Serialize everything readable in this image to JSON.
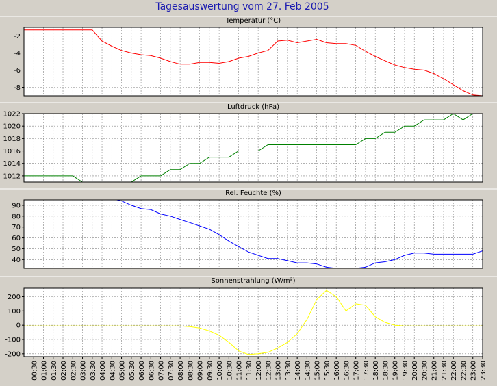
{
  "title": "Tagesauswertung vom 27. Feb 2005",
  "colors": {
    "background": "#d4d0c8",
    "plot_background": "#ffffff",
    "grid": "#808080",
    "title": "#1a1ab0"
  },
  "chart_data": [
    {
      "type": "line",
      "title": "Temperatur (°C)",
      "color": "#ff0000",
      "ylim": [
        -9,
        -1
      ],
      "yticks": [
        -2,
        -4,
        -6,
        -8
      ],
      "grid": true,
      "x": [
        "00:00",
        "00:30",
        "01:00",
        "01:30",
        "02:00",
        "02:30",
        "03:00",
        "03:30",
        "04:00",
        "04:30",
        "05:00",
        "05:30",
        "06:00",
        "06:30",
        "07:00",
        "07:30",
        "08:00",
        "08:30",
        "09:00",
        "09:30",
        "10:00",
        "10:30",
        "11:00",
        "11:30",
        "12:00",
        "12:30",
        "13:00",
        "13:30",
        "14:00",
        "14:30",
        "15:00",
        "15:30",
        "16:00",
        "16:30",
        "17:00",
        "17:30",
        "18:00",
        "18:30",
        "19:00",
        "19:30",
        "20:00",
        "20:30",
        "21:00",
        "21:30",
        "22:00",
        "22:30",
        "23:00",
        "23:30"
      ],
      "values": [
        -1.3,
        -1.3,
        -1.3,
        -1.3,
        -1.3,
        -1.3,
        -1.3,
        -1.3,
        -2.6,
        -3.2,
        -3.7,
        -4.0,
        -4.2,
        -4.3,
        -4.6,
        -5.0,
        -5.3,
        -5.3,
        -5.1,
        -5.1,
        -5.2,
        -5.0,
        -4.6,
        -4.4,
        -4.0,
        -3.7,
        -2.6,
        -2.5,
        -2.8,
        -2.6,
        -2.4,
        -2.8,
        -2.9,
        -2.9,
        -3.1,
        -3.8,
        -4.4,
        -4.9,
        -5.4,
        -5.7,
        -5.9,
        -6.0,
        -6.4,
        -7.0,
        -7.7,
        -8.4,
        -8.9,
        -9.0
      ]
    },
    {
      "type": "line",
      "title": "Luftdruck (hPa)",
      "color": "#008000",
      "ylim": [
        1011,
        1022
      ],
      "yticks": [
        1012,
        1014,
        1016,
        1018,
        1020,
        1022
      ],
      "grid": true,
      "x": [
        "00:00",
        "00:30",
        "01:00",
        "01:30",
        "02:00",
        "02:30",
        "03:00",
        "03:30",
        "04:00",
        "04:30",
        "05:00",
        "05:30",
        "06:00",
        "06:30",
        "07:00",
        "07:30",
        "08:00",
        "08:30",
        "09:00",
        "09:30",
        "10:00",
        "10:30",
        "11:00",
        "11:30",
        "12:00",
        "12:30",
        "13:00",
        "13:30",
        "14:00",
        "14:30",
        "15:00",
        "15:30",
        "16:00",
        "16:30",
        "17:00",
        "17:30",
        "18:00",
        "18:30",
        "19:00",
        "19:30",
        "20:00",
        "20:30",
        "21:00",
        "21:30",
        "22:00",
        "22:30",
        "23:00",
        "23:30"
      ],
      "values": [
        1012,
        1012,
        1012,
        1012,
        1012,
        1012,
        1011,
        1011,
        1011,
        1011,
        1011,
        1011,
        1012,
        1012,
        1012,
        1013,
        1013,
        1014,
        1014,
        1015,
        1015,
        1015,
        1016,
        1016,
        1016,
        1017,
        1017,
        1017,
        1017,
        1017,
        1017,
        1017,
        1017,
        1017,
        1017,
        1018,
        1018,
        1019,
        1019,
        1020,
        1020,
        1021,
        1021,
        1021,
        1022,
        1021,
        1022,
        1022
      ]
    },
    {
      "type": "line",
      "title": "Rel. Feuchte (%)",
      "color": "#0000ff",
      "ylim": [
        32,
        95
      ],
      "yticks": [
        90,
        80,
        70,
        60,
        50,
        40
      ],
      "grid": true,
      "x": [
        "00:00",
        "00:30",
        "01:00",
        "01:30",
        "02:00",
        "02:30",
        "03:00",
        "03:30",
        "04:00",
        "04:30",
        "05:00",
        "05:30",
        "06:00",
        "06:30",
        "07:00",
        "07:30",
        "08:00",
        "08:30",
        "09:00",
        "09:30",
        "10:00",
        "10:30",
        "11:00",
        "11:30",
        "12:00",
        "12:30",
        "13:00",
        "13:30",
        "14:00",
        "14:30",
        "15:00",
        "15:30",
        "16:00",
        "16:30",
        "17:00",
        "17:30",
        "18:00",
        "18:30",
        "19:00",
        "19:30",
        "20:00",
        "20:30",
        "21:00",
        "21:30",
        "22:00",
        "22:30",
        "23:00",
        "23:30"
      ],
      "values": [
        95,
        95,
        95,
        95,
        95,
        95,
        95,
        96,
        97,
        96,
        94,
        90,
        87,
        86,
        82,
        80,
        77,
        74,
        71,
        68,
        63,
        57,
        52,
        47,
        44,
        41,
        41,
        39,
        37,
        37,
        36,
        33,
        32,
        32,
        32,
        33,
        37,
        38,
        40,
        44,
        46,
        46,
        45,
        45,
        45,
        45,
        45,
        48
      ]
    },
    {
      "type": "line",
      "title": "Sonnenstrahlung (W/m²)",
      "color": "#ffff00",
      "ylim": [
        -220,
        260
      ],
      "yticks": [
        200,
        100,
        0,
        -100,
        -200
      ],
      "grid": true,
      "x": [
        "00:00",
        "00:30",
        "01:00",
        "01:30",
        "02:00",
        "02:30",
        "03:00",
        "03:30",
        "04:00",
        "04:30",
        "05:00",
        "05:30",
        "06:00",
        "06:30",
        "07:00",
        "07:30",
        "08:00",
        "08:30",
        "09:00",
        "09:30",
        "10:00",
        "10:30",
        "11:00",
        "11:30",
        "12:00",
        "12:30",
        "13:00",
        "13:30",
        "14:00",
        "14:30",
        "15:00",
        "15:30",
        "16:00",
        "16:30",
        "17:00",
        "17:30",
        "18:00",
        "18:30",
        "19:00",
        "19:30",
        "20:00",
        "20:30",
        "21:00",
        "21:30",
        "22:00",
        "22:30",
        "23:00",
        "23:30"
      ],
      "values": [
        -5,
        -5,
        -5,
        -5,
        -5,
        -5,
        -5,
        -5,
        -5,
        -5,
        -5,
        -5,
        -5,
        -5,
        -5,
        -5,
        -5,
        -10,
        -20,
        -40,
        -70,
        -120,
        -180,
        -205,
        -200,
        -190,
        -160,
        -120,
        -60,
        40,
        180,
        245,
        200,
        100,
        150,
        140,
        60,
        20,
        0,
        -5,
        -5,
        -5,
        -5,
        -5,
        -5,
        -5,
        -5,
        -5
      ]
    }
  ],
  "x_ticks": [
    "00:30",
    "01:00",
    "01:30",
    "02:00",
    "02:30",
    "03:00",
    "03:30",
    "04:00",
    "04:30",
    "05:00",
    "05:30",
    "06:00",
    "06:30",
    "07:00",
    "07:30",
    "08:00",
    "08:30",
    "09:00",
    "09:30",
    "10:00",
    "10:30",
    "11:00",
    "11:30",
    "12:00",
    "12:30",
    "13:00",
    "13:30",
    "14:00",
    "14:30",
    "15:00",
    "15:30",
    "16:00",
    "16:30",
    "17:00",
    "17:30",
    "18:00",
    "18:30",
    "19:00",
    "19:30",
    "20:00",
    "20:30",
    "21:00",
    "21:30",
    "22:00",
    "22:30",
    "23:00",
    "23:30"
  ]
}
